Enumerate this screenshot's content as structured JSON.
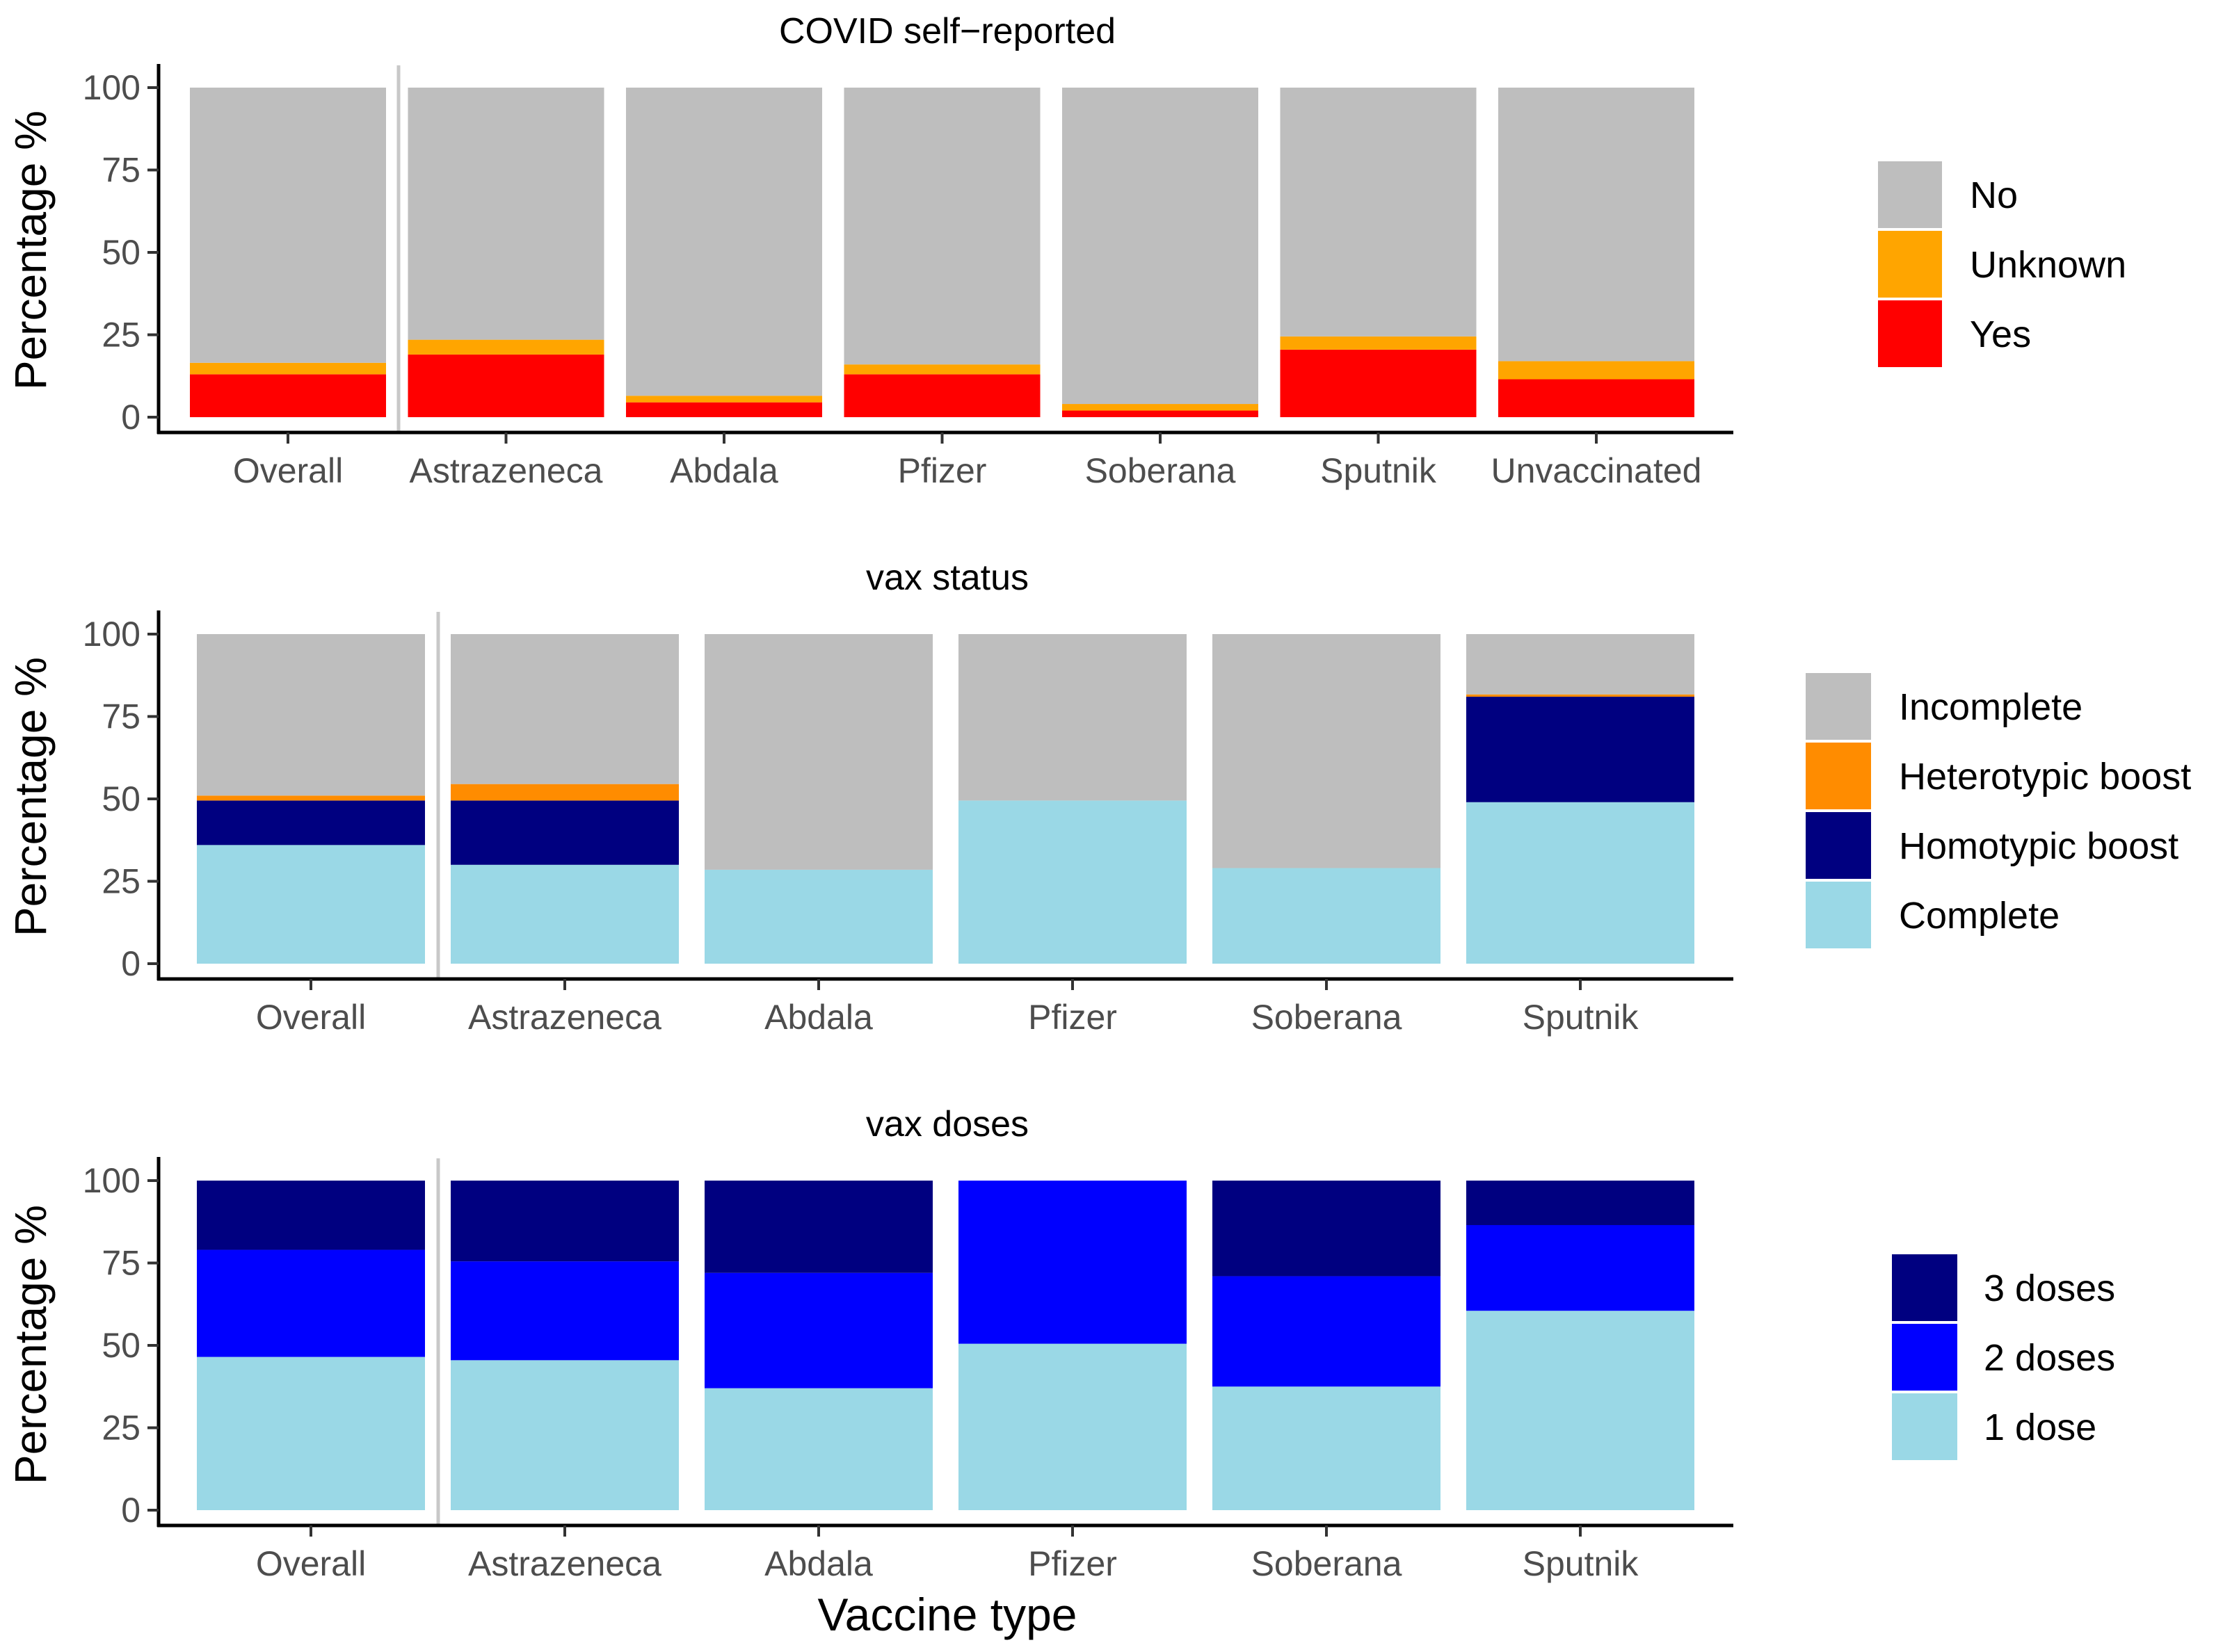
{
  "chart_data": [
    {
      "type": "bar",
      "stacked": true,
      "title": "COVID self−reported",
      "ylabel": "Percentage %",
      "xlabel": "",
      "ylim": [
        0,
        100
      ],
      "yticks": [
        0,
        25,
        50,
        75,
        100
      ],
      "categories": [
        "Overall",
        "Astrazeneca",
        "Abdala",
        "Pfizer",
        "Soberana",
        "Sputnik",
        "Unvaccinated"
      ],
      "series": [
        {
          "name": "Yes",
          "color": "#ff0000",
          "values": [
            13,
            19,
            4.5,
            13,
            2,
            20.5,
            11.5
          ]
        },
        {
          "name": "Unknown",
          "color": "#ffa500",
          "values": [
            3.5,
            4.5,
            2,
            3,
            2,
            4,
            5.5
          ]
        },
        {
          "name": "No",
          "color": "#bebebe",
          "values": [
            83.5,
            76.5,
            93.5,
            84,
            96,
            75.5,
            83
          ]
        }
      ],
      "legend": {
        "position": "right",
        "order": [
          "No",
          "Unknown",
          "Yes"
        ]
      }
    },
    {
      "type": "bar",
      "stacked": true,
      "title": "vax status",
      "ylabel": "Percentage %",
      "xlabel": "",
      "ylim": [
        0,
        100
      ],
      "yticks": [
        0,
        25,
        50,
        75,
        100
      ],
      "categories": [
        "Overall",
        "Astrazeneca",
        "Abdala",
        "Pfizer",
        "Soberana",
        "Sputnik"
      ],
      "series": [
        {
          "name": "Complete",
          "color": "#9ad8e6",
          "values": [
            36,
            30,
            28.5,
            49.5,
            29,
            49
          ]
        },
        {
          "name": "Homotypic boost",
          "color": "#000080",
          "values": [
            13.5,
            19.5,
            0,
            0,
            0,
            32
          ]
        },
        {
          "name": "Heterotypic boost",
          "color": "#ff8c00",
          "values": [
            1.5,
            5,
            0,
            0,
            0,
            0.7
          ]
        },
        {
          "name": "Incomplete",
          "color": "#bebebe",
          "values": [
            49,
            45.5,
            71.5,
            50.5,
            71,
            18.3
          ]
        }
      ],
      "legend": {
        "position": "right",
        "order": [
          "Incomplete",
          "Heterotypic boost",
          "Homotypic boost",
          "Complete"
        ]
      }
    },
    {
      "type": "bar",
      "stacked": true,
      "title": "vax doses",
      "ylabel": "Percentage %",
      "xlabel": "Vaccine type",
      "ylim": [
        0,
        100
      ],
      "yticks": [
        0,
        25,
        50,
        75,
        100
      ],
      "categories": [
        "Overall",
        "Astrazeneca",
        "Abdala",
        "Pfizer",
        "Soberana",
        "Sputnik"
      ],
      "series": [
        {
          "name": "1 dose",
          "color": "#9ad8e6",
          "values": [
            46.5,
            45.5,
            37,
            50.5,
            37.5,
            60.5
          ]
        },
        {
          "name": "2 doses",
          "color": "#0000ff",
          "values": [
            32.5,
            30,
            35,
            49.5,
            33.5,
            26
          ]
        },
        {
          "name": "3 doses",
          "color": "#000080",
          "values": [
            21,
            24.5,
            28,
            0,
            29,
            13.5
          ]
        }
      ],
      "legend": {
        "position": "right",
        "order": [
          "3 doses",
          "2 doses",
          "1 dose"
        ]
      }
    }
  ]
}
